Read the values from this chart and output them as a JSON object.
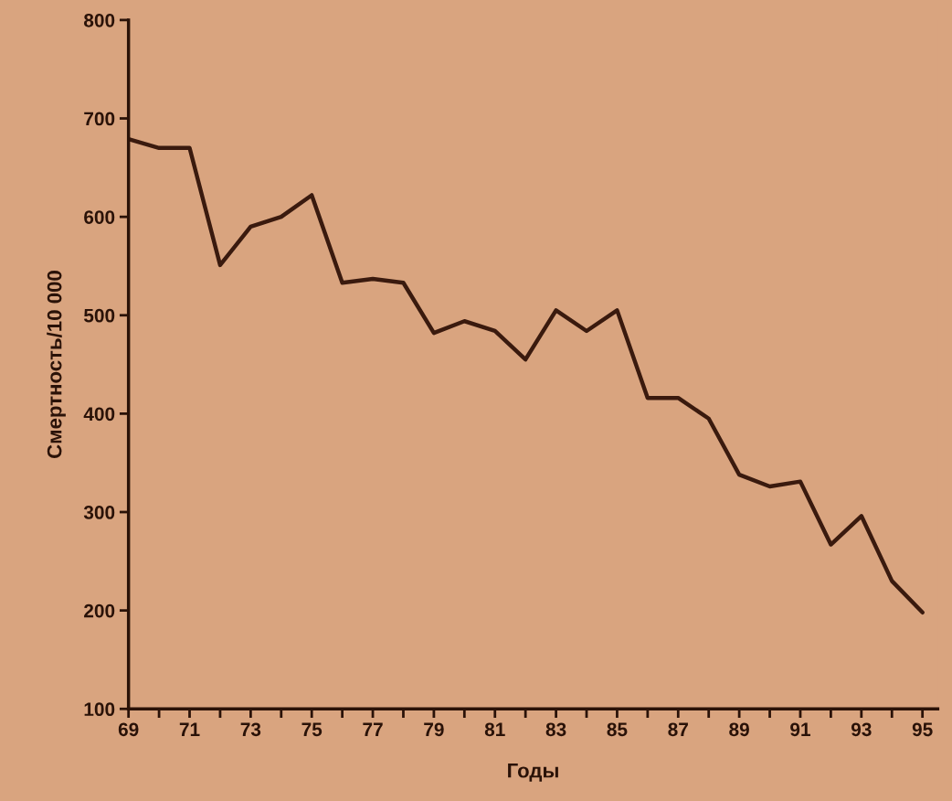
{
  "chart_data": {
    "type": "line",
    "xlabel": "Годы",
    "ylabel": "Смертность/10 000",
    "x": [
      69,
      70,
      71,
      72,
      73,
      74,
      75,
      76,
      77,
      78,
      79,
      80,
      81,
      82,
      83,
      84,
      85,
      86,
      87,
      88,
      89,
      90,
      91,
      92,
      93,
      94,
      95
    ],
    "series": [
      {
        "color": "#3a1a0e",
        "values": [
          679,
          670,
          670,
          551,
          590,
          600,
          622,
          533,
          537,
          533,
          482,
          494,
          484,
          455,
          505,
          484,
          505,
          416,
          416,
          395,
          338,
          326,
          331,
          267,
          296,
          230,
          198
        ]
      }
    ],
    "xlim": [
      69,
      95.5
    ],
    "xticks": [
      69,
      {
        "value": 70,
        "label": null
      },
      71,
      {
        "value": 72,
        "label": null
      },
      73,
      {
        "value": 74,
        "label": null
      },
      75,
      {
        "value": 76,
        "label": null
      },
      77,
      {
        "value": 78,
        "label": null
      },
      79,
      {
        "value": 80,
        "label": null
      },
      81,
      {
        "value": 82,
        "label": null
      },
      83,
      {
        "value": 84,
        "label": null
      },
      85,
      {
        "value": 86,
        "label": null
      },
      87,
      {
        "value": 88,
        "label": null
      },
      89,
      {
        "value": 90,
        "label": null
      },
      91,
      {
        "value": 92,
        "label": null
      },
      93,
      {
        "value": 94,
        "label": null
      },
      95
    ],
    "ylim": [
      100,
      800
    ],
    "yticks": [
      100,
      200,
      300,
      400,
      500,
      600,
      700,
      800
    ],
    "grid": false,
    "legend": false,
    "marker": "none",
    "line_style": "solid"
  }
}
